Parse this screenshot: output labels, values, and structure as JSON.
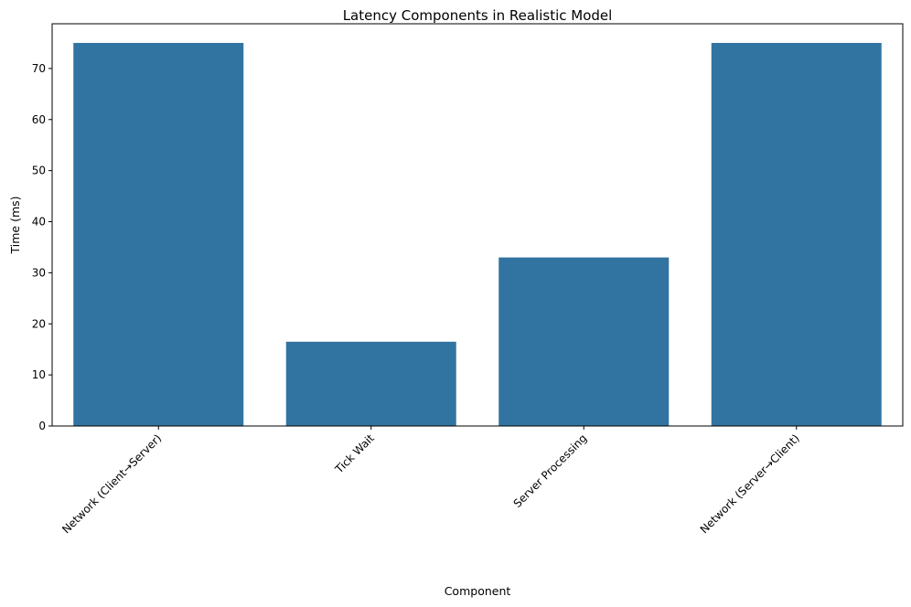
{
  "chart_data": {
    "type": "bar",
    "title": "Latency Components in Realistic Model",
    "xlabel": "Component",
    "ylabel": "Time (ms)",
    "categories": [
      "Network (Client→Server)",
      "Tick Wait",
      "Server Processing",
      "Network (Server→Client)"
    ],
    "values": [
      75,
      16.5,
      33,
      75
    ],
    "ylim": [
      0,
      78.75
    ],
    "yticks": [
      0,
      10,
      20,
      30,
      40,
      50,
      60,
      70
    ],
    "bar_color": "#3274a1",
    "xtick_rotation_deg": 45,
    "grid": false,
    "legend": "none"
  }
}
